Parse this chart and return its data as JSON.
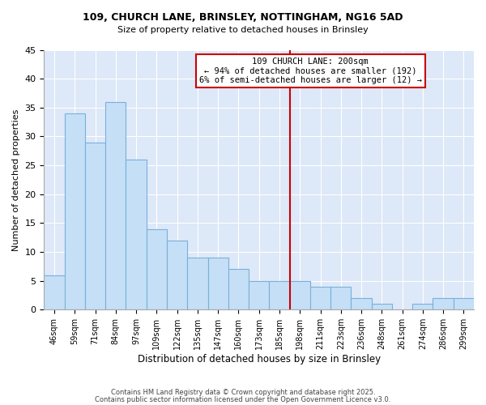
{
  "title1": "109, CHURCH LANE, BRINSLEY, NOTTINGHAM, NG16 5AD",
  "title2": "Size of property relative to detached houses in Brinsley",
  "xlabel": "Distribution of detached houses by size in Brinsley",
  "ylabel": "Number of detached properties",
  "categories": [
    "46sqm",
    "59sqm",
    "71sqm",
    "84sqm",
    "97sqm",
    "109sqm",
    "122sqm",
    "135sqm",
    "147sqm",
    "160sqm",
    "173sqm",
    "185sqm",
    "198sqm",
    "211sqm",
    "223sqm",
    "236sqm",
    "248sqm",
    "261sqm",
    "274sqm",
    "286sqm",
    "299sqm"
  ],
  "values": [
    6,
    34,
    29,
    36,
    26,
    14,
    12,
    9,
    9,
    7,
    5,
    5,
    5,
    4,
    4,
    2,
    1,
    0,
    1,
    2,
    2
  ],
  "bar_color": "#c5dff7",
  "bar_edge_color": "#7ab0d9",
  "highlight_index": 12,
  "vline_color": "#cc0000",
  "annotation_title": "109 CHURCH LANE: 200sqm",
  "annotation_line1": "← 94% of detached houses are smaller (192)",
  "annotation_line2": "6% of semi-detached houses are larger (12) →",
  "annotation_box_color": "#ffffff",
  "annotation_box_edge": "#cc0000",
  "footer1": "Contains HM Land Registry data © Crown copyright and database right 2025.",
  "footer2": "Contains public sector information licensed under the Open Government Licence v3.0.",
  "background_color": "#dde8f8",
  "ylim": [
    0,
    45
  ],
  "yticks": [
    0,
    5,
    10,
    15,
    20,
    25,
    30,
    35,
    40,
    45
  ],
  "grid_color": "#ffffff",
  "title1_fontsize": 9,
  "title2_fontsize": 8
}
